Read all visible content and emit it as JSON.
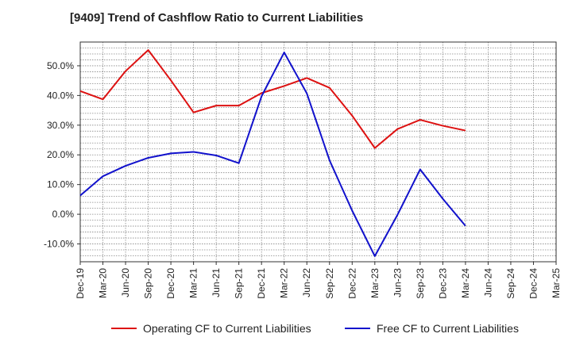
{
  "chart_data": {
    "type": "line",
    "title": "[9409]  Trend of Cashflow Ratio to Current Liabilities",
    "xlabel": "",
    "ylabel": "",
    "categories": [
      "Dec-19",
      "Mar-20",
      "Jun-20",
      "Sep-20",
      "Dec-20",
      "Mar-21",
      "Jun-21",
      "Sep-21",
      "Dec-21",
      "Mar-22",
      "Jun-22",
      "Sep-22",
      "Dec-22",
      "Mar-23",
      "Jun-23",
      "Sep-23",
      "Dec-23",
      "Mar-24",
      "Jun-24",
      "Sep-24",
      "Dec-24",
      "Mar-25"
    ],
    "ylim": [
      -16,
      58
    ],
    "yticks": [
      -10,
      0,
      10,
      20,
      30,
      40,
      50
    ],
    "ytick_labels": [
      "-10.0%",
      "0.0%",
      "10.0%",
      "20.0%",
      "30.0%",
      "40.0%",
      "50.0%"
    ],
    "grid": true,
    "legend_position": "bottom",
    "series": [
      {
        "name": "Operating CF to Current Liabilities",
        "color": "#dd1111",
        "values": [
          41.5,
          38.7,
          48.2,
          55.3,
          45.1,
          34.3,
          36.6,
          36.6,
          40.8,
          43.2,
          45.9,
          42.6,
          33.2,
          22.3,
          28.7,
          31.8,
          29.8,
          28.2,
          null,
          null,
          null,
          null
        ]
      },
      {
        "name": "Free CF to Current Liabilities",
        "color": "#1111cc",
        "values": [
          6.3,
          12.8,
          16.3,
          19.0,
          20.5,
          21.0,
          19.8,
          17.2,
          39.7,
          54.5,
          40.7,
          18.2,
          1.2,
          -14.1,
          -0.2,
          15.1,
          5.2,
          -3.9,
          null,
          null,
          null,
          null
        ]
      }
    ]
  }
}
